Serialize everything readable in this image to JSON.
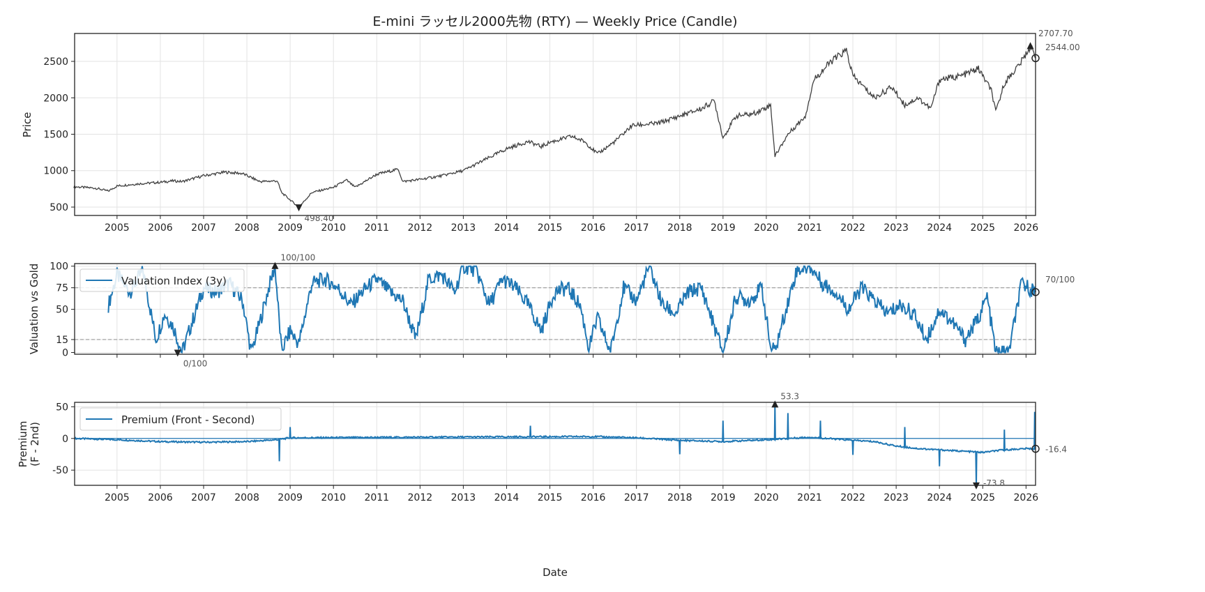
{
  "chart_data": [
    {
      "type": "line",
      "title": "E-mini ラッセル2000先物 (RTY) — Weekly Price (Candle)",
      "ylabel": "Price",
      "xlabel": "",
      "xlim": [
        2004.02,
        2026.22
      ],
      "ylim": [
        385,
        2883
      ],
      "yticks": [
        500,
        1000,
        1500,
        2000,
        2500
      ],
      "xticks": [
        2005,
        2006,
        2007,
        2008,
        2009,
        2010,
        2011,
        2012,
        2013,
        2014,
        2015,
        2016,
        2017,
        2018,
        2019,
        2020,
        2021,
        2022,
        2023,
        2024,
        2025,
        2026
      ],
      "series": [
        {
          "name": "Price",
          "color": "#404040",
          "x": [
            2004.0,
            2004.5,
            2004.8,
            2005.0,
            2005.5,
            2006.0,
            2006.3,
            2006.5,
            2007.0,
            2007.5,
            2007.9,
            2008.3,
            2008.7,
            2008.8,
            2009.2,
            2009.5,
            2010.0,
            2010.3,
            2010.5,
            2011.0,
            2011.5,
            2011.6,
            2012.0,
            2012.5,
            2013.0,
            2013.5,
            2014.0,
            2014.5,
            2014.8,
            2015.0,
            2015.5,
            2015.8,
            2016.1,
            2016.5,
            2016.9,
            2017.5,
            2018.0,
            2018.5,
            2018.8,
            2019.0,
            2019.3,
            2019.7,
            2020.1,
            2020.2,
            2020.5,
            2020.9,
            2021.1,
            2021.5,
            2021.85,
            2022.0,
            2022.5,
            2022.9,
            2023.2,
            2023.5,
            2023.8,
            2024.0,
            2024.5,
            2024.9,
            2025.2,
            2025.3,
            2025.5,
            2025.9,
            2026.1,
            2026.22
          ],
          "y": [
            780,
            760,
            720,
            790,
            820,
            840,
            860,
            850,
            930,
            980,
            960,
            850,
            860,
            700,
            498,
            700,
            770,
            870,
            770,
            950,
            1020,
            850,
            880,
            930,
            1000,
            1150,
            1300,
            1400,
            1330,
            1390,
            1470,
            1400,
            1230,
            1400,
            1620,
            1650,
            1750,
            1850,
            1960,
            1450,
            1750,
            1780,
            1900,
            1200,
            1500,
            1750,
            2250,
            2500,
            2650,
            2300,
            2000,
            2150,
            1900,
            2000,
            1850,
            2250,
            2300,
            2400,
            2100,
            1800,
            2200,
            2500,
            2707,
            2544
          ]
        }
      ],
      "annotations": [
        {
          "text": "2707.70",
          "x": 2026.1,
          "y": 2707.7,
          "marker": "max"
        },
        {
          "text": "2544.00",
          "x": 2026.22,
          "y": 2544,
          "marker": "last"
        },
        {
          "text": "498.40",
          "x": 2009.2,
          "y": 498.4,
          "marker": "min"
        }
      ]
    },
    {
      "type": "line",
      "ylabel": "Valuation vs Gold",
      "xlim": [
        2004.02,
        2026.22
      ],
      "ylim": [
        -2,
        103
      ],
      "yticks": [
        0,
        15,
        50,
        75,
        100
      ],
      "hlines": [
        15,
        75
      ],
      "legend": "top-left",
      "series": [
        {
          "name": "Valuation Index (3y)",
          "color": "#1f77b4",
          "x": [
            2004.8,
            2005.0,
            2005.3,
            2005.6,
            2005.9,
            2006.1,
            2006.3,
            2006.5,
            2006.7,
            2007.0,
            2007.3,
            2007.6,
            2007.9,
            2008.1,
            2008.3,
            2008.5,
            2008.65,
            2008.8,
            2009.0,
            2009.2,
            2009.5,
            2009.8,
            2010.1,
            2010.4,
            2010.7,
            2011.0,
            2011.3,
            2011.6,
            2011.9,
            2012.2,
            2012.5,
            2012.8,
            2013.0,
            2013.3,
            2013.6,
            2013.9,
            2014.2,
            2014.5,
            2014.8,
            2015.1,
            2015.4,
            2015.7,
            2015.9,
            2016.1,
            2016.4,
            2016.7,
            2017.0,
            2017.3,
            2017.6,
            2017.9,
            2018.2,
            2018.5,
            2018.8,
            2019.0,
            2019.3,
            2019.6,
            2019.9,
            2020.1,
            2020.2,
            2020.4,
            2020.7,
            2021.0,
            2021.3,
            2021.6,
            2021.9,
            2022.2,
            2022.5,
            2022.8,
            2023.1,
            2023.4,
            2023.7,
            2024.0,
            2024.3,
            2024.6,
            2024.9,
            2025.1,
            2025.3,
            2025.6,
            2025.9,
            2026.22
          ],
          "y": [
            55,
            90,
            70,
            95,
            15,
            45,
            30,
            0,
            30,
            75,
            70,
            80,
            60,
            0,
            35,
            74,
            100,
            2,
            25,
            10,
            80,
            85,
            75,
            55,
            72,
            85,
            70,
            60,
            15,
            85,
            90,
            70,
            100,
            95,
            55,
            85,
            75,
            55,
            25,
            70,
            75,
            55,
            5,
            40,
            0,
            75,
            60,
            100,
            55,
            45,
            70,
            75,
            30,
            0,
            65,
            60,
            75,
            5,
            2,
            40,
            95,
            100,
            80,
            70,
            50,
            75,
            60,
            45,
            55,
            45,
            15,
            50,
            35,
            15,
            40,
            65,
            0,
            0,
            80,
            70
          ]
        }
      ],
      "annotations": [
        {
          "text": "100/100",
          "x": 2008.65,
          "y": 100,
          "marker": "max"
        },
        {
          "text": "0/100",
          "x": 2006.4,
          "y": 0,
          "marker": "min"
        },
        {
          "text": "70/100",
          "x": 2026.22,
          "y": 70,
          "marker": "last"
        }
      ]
    },
    {
      "type": "line",
      "ylabel": "Premium\n(F - 2nd)",
      "xlabel": "Date",
      "xlim": [
        2004.02,
        2026.22
      ],
      "ylim": [
        -74,
        57
      ],
      "yticks": [
        -50,
        0,
        50
      ],
      "hlines": [
        0
      ],
      "legend": "top-left",
      "xticks": [
        2005,
        2006,
        2007,
        2008,
        2009,
        2010,
        2011,
        2012,
        2013,
        2014,
        2015,
        2016,
        2017,
        2018,
        2019,
        2020,
        2021,
        2022,
        2023,
        2024,
        2025,
        2026
      ],
      "series": [
        {
          "name": "Premium (Front - Second)",
          "color": "#1f77b4",
          "x": [
            2004.02,
            2005.0,
            2006.0,
            2007.0,
            2008.0,
            2008.7,
            2009.0,
            2012.0,
            2016.0,
            2017.0,
            2018.0,
            2019.0,
            2020.0,
            2021.0,
            2022.0,
            2022.5,
            2023.0,
            2023.5,
            2024.0,
            2024.5,
            2025.0,
            2025.5,
            2026.0,
            2026.22
          ],
          "y": [
            0,
            -2,
            -5,
            -6,
            -5,
            -2,
            1,
            2,
            3,
            1,
            -3,
            -5,
            -2,
            2,
            -3,
            -5,
            -12,
            -16,
            -18,
            -20,
            -22,
            -18,
            -16,
            -16.4
          ]
        }
      ],
      "spikes": [
        {
          "x": 2008.75,
          "y": -36
        },
        {
          "x": 2009.0,
          "y": 18
        },
        {
          "x": 2014.55,
          "y": 20
        },
        {
          "x": 2018.0,
          "y": -25
        },
        {
          "x": 2019.0,
          "y": 28
        },
        {
          "x": 2020.2,
          "y": 53.3
        },
        {
          "x": 2020.5,
          "y": 40
        },
        {
          "x": 2021.25,
          "y": 28
        },
        {
          "x": 2022.0,
          "y": -26
        },
        {
          "x": 2023.2,
          "y": 18
        },
        {
          "x": 2024.0,
          "y": -44
        },
        {
          "x": 2024.85,
          "y": -73.8
        },
        {
          "x": 2025.5,
          "y": 14
        },
        {
          "x": 2026.2,
          "y": 42
        }
      ],
      "annotations": [
        {
          "text": "53.3",
          "x": 2020.2,
          "y": 53.3,
          "marker": "max"
        },
        {
          "text": "-73.8",
          "x": 2024.85,
          "y": -73.8,
          "marker": "min"
        },
        {
          "text": "-16.4",
          "x": 2026.22,
          "y": -16.4,
          "marker": "last"
        }
      ]
    }
  ]
}
